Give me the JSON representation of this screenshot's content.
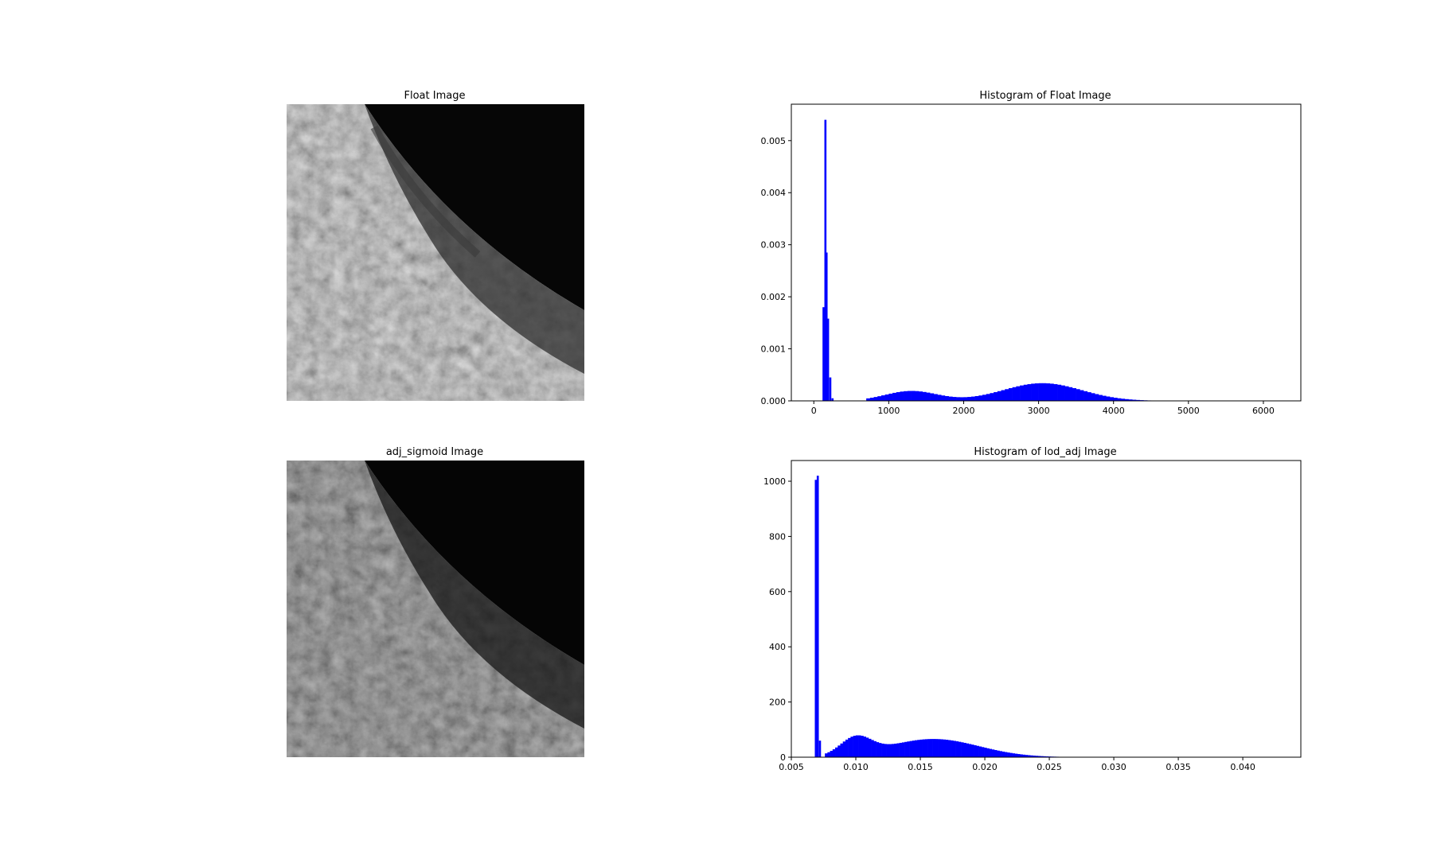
{
  "chart_data": [
    {
      "type": "image",
      "title": "Float Image"
    },
    {
      "type": "histogram",
      "title": "Histogram of Float Image",
      "color": "#0000ff",
      "xlim": [
        -300,
        6500
      ],
      "ylim": [
        0,
        0.0057
      ],
      "x_ticks": [
        0,
        1000,
        2000,
        3000,
        4000,
        5000,
        6000
      ],
      "x_tick_labels": [
        "0",
        "1000",
        "2000",
        "3000",
        "4000",
        "5000",
        "6000"
      ],
      "y_ticks": [
        0,
        0.001,
        0.002,
        0.003,
        0.004,
        0.005
      ],
      "y_tick_labels": [
        "0.000",
        "0.001",
        "0.002",
        "0.003",
        "0.004",
        "0.005"
      ],
      "spikes": [
        {
          "x": 130,
          "value": 0.0018
        },
        {
          "x": 155,
          "value": 0.0054
        },
        {
          "x": 170,
          "value": 0.00285
        },
        {
          "x": 190,
          "value": 0.00158
        },
        {
          "x": 220,
          "value": 0.00045
        },
        {
          "x": 250,
          "value": 5e-05
        }
      ],
      "distribution": {
        "range": [
          700,
          4900
        ],
        "bins": 84,
        "peaks": [
          {
            "x": 1300,
            "value": 0.00019
          },
          {
            "x": 3050,
            "value": 0.00034
          }
        ]
      }
    },
    {
      "type": "image",
      "title": "adj_sigmoid Image"
    },
    {
      "type": "histogram",
      "title": "Histogram of lod_adj Image",
      "color": "#0000ff",
      "xlim": [
        0.005,
        0.0445
      ],
      "ylim": [
        0,
        1075
      ],
      "x_ticks": [
        0.005,
        0.01,
        0.015,
        0.02,
        0.025,
        0.03,
        0.035,
        0.04
      ],
      "x_tick_labels": [
        "0.005",
        "0.010",
        "0.015",
        "0.020",
        "0.025",
        "0.030",
        "0.035",
        "0.040"
      ],
      "y_ticks": [
        0,
        200,
        400,
        600,
        800,
        1000
      ],
      "y_tick_labels": [
        "0",
        "200",
        "400",
        "600",
        "800",
        "1000"
      ],
      "spikes": [
        {
          "x": 0.0069,
          "value": 1005
        },
        {
          "x": 0.00705,
          "value": 1020
        },
        {
          "x": 0.00722,
          "value": 60
        }
      ],
      "distribution": {
        "range": [
          0.0076,
          0.0285
        ],
        "bins": 105,
        "peaks": [
          {
            "x": 0.01,
            "value": 63
          },
          {
            "x": 0.016,
            "value": 66
          }
        ]
      }
    }
  ]
}
